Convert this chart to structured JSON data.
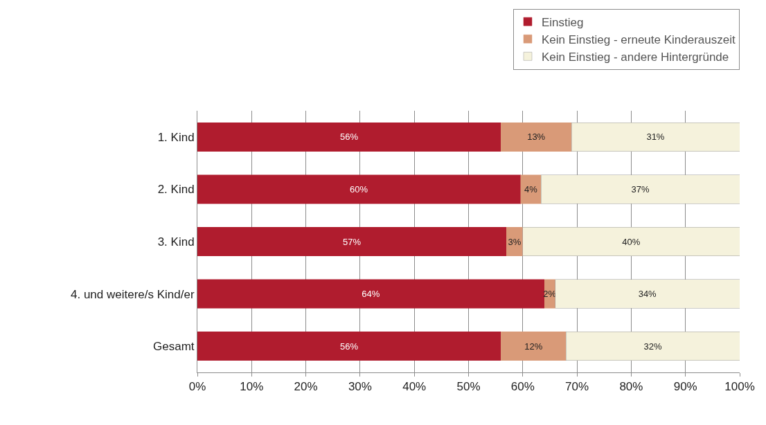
{
  "chart_data": {
    "type": "bar",
    "orientation": "horizontal",
    "stacked": true,
    "categories": [
      "1. Kind",
      "2. Kind",
      "3. Kind",
      "4. und weitere/s Kind/er",
      "Gesamt"
    ],
    "series": [
      {
        "name": "Einstieg",
        "color": "#b01c2e",
        "values": [
          56,
          59.6,
          57,
          64,
          56
        ],
        "value_labels": [
          "56%",
          "60%",
          "57%",
          "64%",
          "56%"
        ]
      },
      {
        "name": "Kein Einstieg - erneute Kinderauszeit",
        "color": "#d99a78",
        "values": [
          13,
          3.8,
          3,
          2,
          12
        ],
        "value_labels": [
          "13%",
          "4%",
          "3%",
          "2%",
          "12%"
        ]
      },
      {
        "name": "Kein Einstieg - andere Hintergründe",
        "color": "#f5f2dc",
        "values": [
          31,
          36.6,
          40,
          34,
          32
        ],
        "value_labels": [
          "31%",
          "37%",
          "40%",
          "34%",
          "32%"
        ]
      }
    ],
    "xlim": [
      0,
      100
    ],
    "xticks": [
      {
        "value": 0,
        "label": "0%"
      },
      {
        "value": 10,
        "label": "10%"
      },
      {
        "value": 20,
        "label": "20%"
      },
      {
        "value": 30,
        "label": "30%"
      },
      {
        "value": 40,
        "label": "40%"
      },
      {
        "value": 50,
        "label": "50%"
      },
      {
        "value": 60,
        "label": "60%"
      },
      {
        "value": 70,
        "label": "70%"
      },
      {
        "value": 80,
        "label": "80%"
      },
      {
        "value": 90,
        "label": "90%"
      },
      {
        "value": 100,
        "label": "100%"
      }
    ],
    "grid": "x",
    "legend": "top right"
  }
}
